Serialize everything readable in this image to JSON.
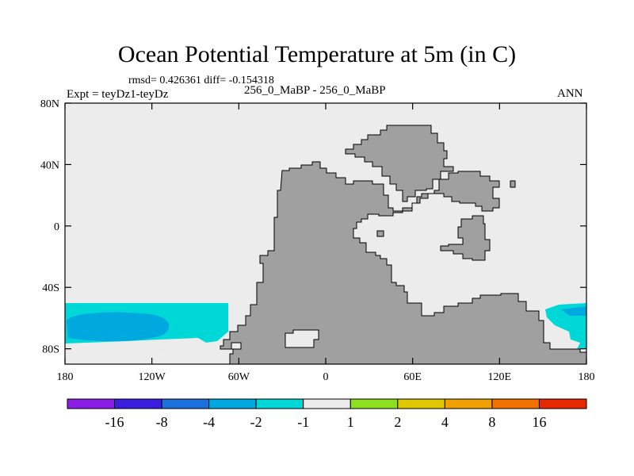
{
  "header": {
    "title": "Ocean Potential Temperature at 5m (in C)",
    "stats": "rmsd= 0.426361 diff= -0.154318",
    "experiment": "Expt = teyDz1-teyDz",
    "case": "256_0_MaBP - 256_0_MaBP",
    "season": "ANN"
  },
  "colors": {
    "ocean_neutral": "#ececec",
    "land": "#a0a0a0",
    "light_cyan": "#00d8d8",
    "medium_blue": "#00a8e0"
  },
  "chart_data": {
    "type": "heatmap",
    "title": "Ocean Potential Temperature at 5m (in C)",
    "xlabel": "",
    "ylabel": "",
    "x_ticks": [
      "180",
      "120W",
      "60W",
      "0",
      "60E",
      "120E",
      "180"
    ],
    "y_ticks": [
      "80N",
      "40N",
      "0",
      "40S",
      "80S"
    ],
    "xlim": [
      -180,
      180
    ],
    "ylim": [
      -90,
      80
    ],
    "colorbar": {
      "labels": [
        "-16",
        "-8",
        "-4",
        "-2",
        "-1",
        "1",
        "2",
        "4",
        "8",
        "16"
      ],
      "colors": [
        "#8a1ee6",
        "#3a1ee0",
        "#1a70dc",
        "#00a8e0",
        "#00d8d8",
        "#ececec",
        "#8ce01e",
        "#e0c800",
        "#f0a000",
        "#f07000",
        "#e82800"
      ]
    },
    "features": [
      {
        "name": "southern ocean anomaly band",
        "level": "-1 to -2",
        "lon": [
          -180,
          -82
        ],
        "lat": [
          -48,
          -82
        ]
      },
      {
        "name": "southern ocean anomaly core",
        "level": "-2 to -4",
        "lon": [
          -180,
          -118
        ],
        "lat": [
          -55,
          -72
        ]
      },
      {
        "name": "southern ocean anomaly east",
        "level": "-1 to -2",
        "lon": [
          152,
          180
        ],
        "lat": [
          -48,
          -82
        ]
      }
    ]
  }
}
